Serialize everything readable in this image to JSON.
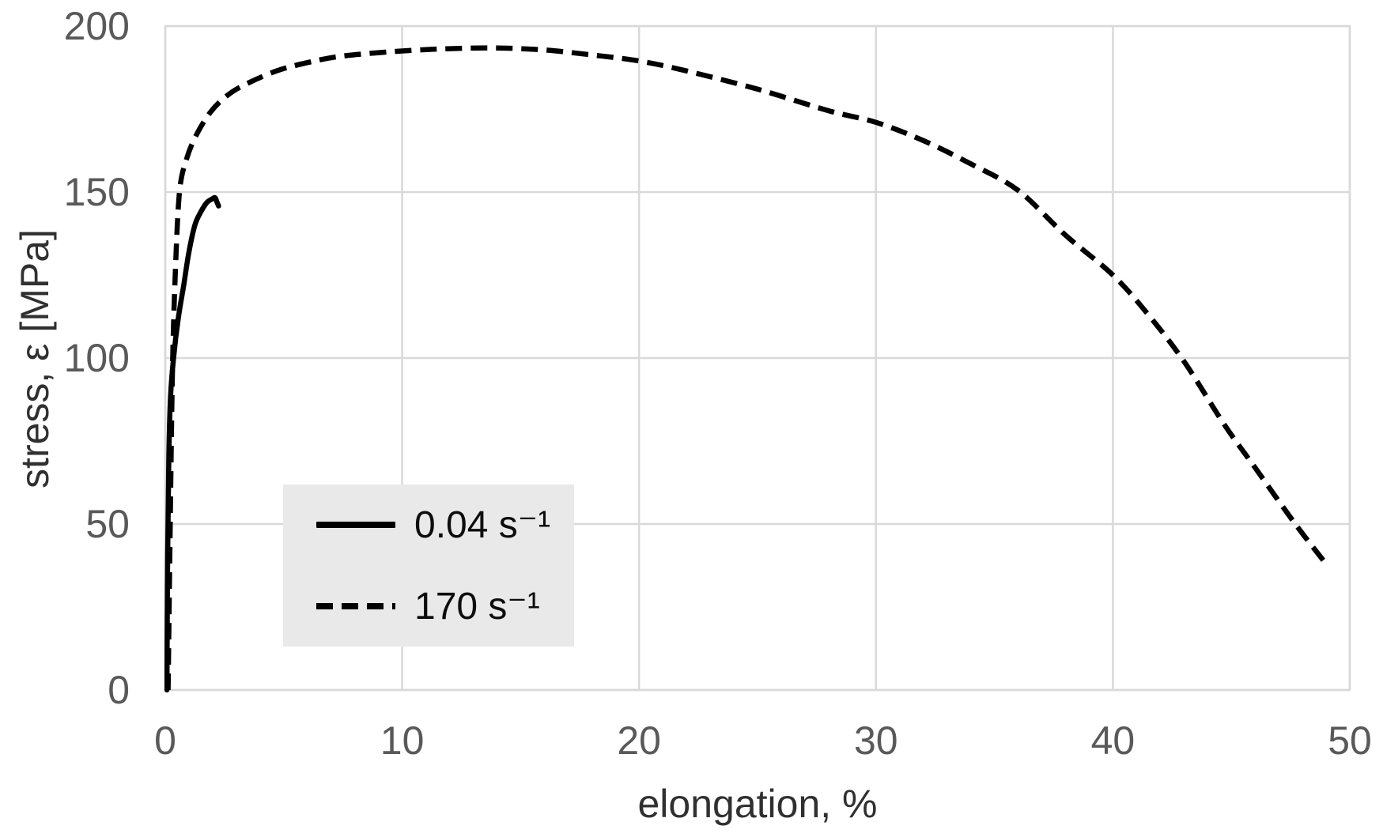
{
  "colors": {
    "background": "#ffffff",
    "grid": "#d9d9d9",
    "plot_border": "#d9d9d9",
    "curve": "#000000",
    "tick_text": "#595959",
    "title_text": "#303030",
    "legend_background": "#e9e9e9",
    "legend_text": "#0d0d0d"
  },
  "chart_data": {
    "type": "line",
    "title": "",
    "xlabel": "elongation, %",
    "ylabel": "stress, ε [MPa]",
    "xlim": [
      0,
      50
    ],
    "ylim": [
      0,
      200
    ],
    "xticks": [
      0,
      10,
      20,
      30,
      40,
      50
    ],
    "yticks": [
      0,
      50,
      100,
      150,
      200
    ],
    "grid": true,
    "legend_position": "inside-lower-left",
    "series": [
      {
        "name": "0.04 s⁻¹",
        "line_style": "solid",
        "color": "#000000",
        "points": [
          [
            0.07,
            0
          ],
          [
            0.1,
            40
          ],
          [
            0.15,
            70
          ],
          [
            0.22,
            88
          ],
          [
            0.35,
            100
          ],
          [
            0.55,
            112
          ],
          [
            0.78,
            122
          ],
          [
            1.0,
            132
          ],
          [
            1.25,
            140
          ],
          [
            1.5,
            144
          ],
          [
            1.75,
            146.8
          ],
          [
            1.95,
            147.8
          ],
          [
            2.1,
            148.3
          ],
          [
            2.18,
            147.0
          ],
          [
            2.25,
            145.8
          ]
        ]
      },
      {
        "name": "170 s⁻¹",
        "line_style": "dashed",
        "color": "#000000",
        "points": [
          [
            0.12,
            0
          ],
          [
            0.2,
            45
          ],
          [
            0.3,
            95
          ],
          [
            0.42,
            125
          ],
          [
            0.6,
            150
          ],
          [
            0.9,
            160
          ],
          [
            1.3,
            167
          ],
          [
            1.9,
            174
          ],
          [
            2.6,
            179
          ],
          [
            3.4,
            182.5
          ],
          [
            4.7,
            186.5
          ],
          [
            6,
            189
          ],
          [
            7.5,
            191
          ],
          [
            10,
            192.5
          ],
          [
            12,
            193.2
          ],
          [
            14,
            193.4
          ],
          [
            16,
            192.8
          ],
          [
            18,
            191.3
          ],
          [
            20,
            189.5
          ],
          [
            22,
            186.5
          ],
          [
            25,
            181
          ],
          [
            28,
            174.5
          ],
          [
            30,
            171
          ],
          [
            32,
            165.5
          ],
          [
            34,
            158.5
          ],
          [
            36,
            150.5
          ],
          [
            38,
            137
          ],
          [
            40,
            125
          ],
          [
            41.5,
            113
          ],
          [
            43,
            99
          ],
          [
            44.7,
            80
          ],
          [
            46,
            67
          ],
          [
            47.7,
            50
          ],
          [
            49,
            38
          ]
        ]
      }
    ]
  }
}
